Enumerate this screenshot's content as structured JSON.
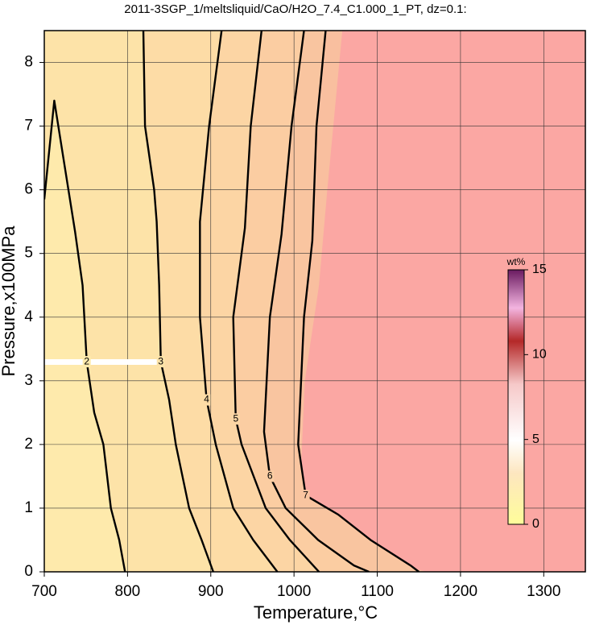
{
  "chart_data": {
    "type": "contour",
    "title": "2011-3SGP_1/meltsliquid/CaO/H2O_7.4_C1.000_1_PT, dz=0.1:",
    "xlabel": "Temperature,°C",
    "ylabel": "Pressure,x100MPa",
    "xlim": [
      700,
      1350
    ],
    "ylim": [
      0,
      8.5
    ],
    "xticks": [
      700,
      800,
      900,
      1000,
      1100,
      1200,
      1300
    ],
    "yticks": [
      0,
      1,
      2,
      3,
      4,
      5,
      6,
      7,
      8
    ],
    "grid": true,
    "background": "#fba7a3",
    "contours": [
      {
        "level": 7.4,
        "line": false,
        "fill": "#f9bf9f",
        "x": [
          1058,
          1040,
          1030,
          1013,
          1008,
          1015,
          1050,
          1100,
          1135,
          1160
        ],
        "y": [
          8.5,
          6,
          4.5,
          3,
          1.5,
          1.1,
          0.8,
          0.3,
          0.08,
          0
        ]
      },
      {
        "level": 7,
        "line": true,
        "fill": "#f9c5a0",
        "x": [
          1038,
          1027,
          1022,
          1012,
          1005,
          1014,
          1053,
          1092,
          1140,
          1150
        ],
        "y": [
          8.5,
          7,
          5.2,
          4,
          2,
          1.2,
          0.9,
          0.5,
          0.1,
          0
        ]
      },
      {
        "level": 6,
        "line": true,
        "fill": "#fbcda2",
        "x": [
          1012,
          997,
          985,
          971,
          964,
          971,
          990,
          1029,
          1072,
          1090
        ],
        "y": [
          8.5,
          7,
          5.3,
          4,
          2.2,
          1.5,
          1,
          0.5,
          0.1,
          0
        ]
      },
      {
        "level": 5,
        "line": true,
        "fill": "#fcd5a4",
        "x": [
          961,
          948,
          941,
          927,
          930,
          937,
          966,
          995,
          1030
        ],
        "y": [
          8.5,
          7,
          5.4,
          4,
          2.4,
          2,
          1,
          0.5,
          0
        ]
      },
      {
        "level": 4,
        "line": true,
        "fill": "#fddca6",
        "x": [
          913,
          898,
          887,
          887,
          895,
          906,
          927,
          951,
          980
        ],
        "y": [
          8.5,
          7,
          5.5,
          4,
          2.7,
          2,
          1,
          0.5,
          0
        ]
      },
      {
        "level": 3,
        "line": true,
        "fill": "#fde3a8",
        "x": [
          819,
          821,
          832,
          835,
          838,
          840,
          850,
          858,
          874,
          889,
          903
        ],
        "y": [
          8.5,
          7,
          6,
          5.5,
          4.5,
          3.3,
          2.7,
          2,
          1,
          0.5,
          0
        ]
      },
      {
        "level": 2,
        "line": true,
        "fill": "#feeaac",
        "x": [
          700,
          712,
          729,
          737,
          746,
          751,
          760,
          771,
          780,
          790,
          797
        ],
        "y": [
          5.85,
          7.4,
          6,
          5.34,
          4.5,
          3.3,
          2.5,
          2,
          1,
          0.5,
          0
        ]
      }
    ],
    "colorbar": {
      "label": "wt%",
      "lim": [
        0,
        15
      ],
      "ticks": [
        0,
        5,
        10,
        15
      ]
    }
  }
}
